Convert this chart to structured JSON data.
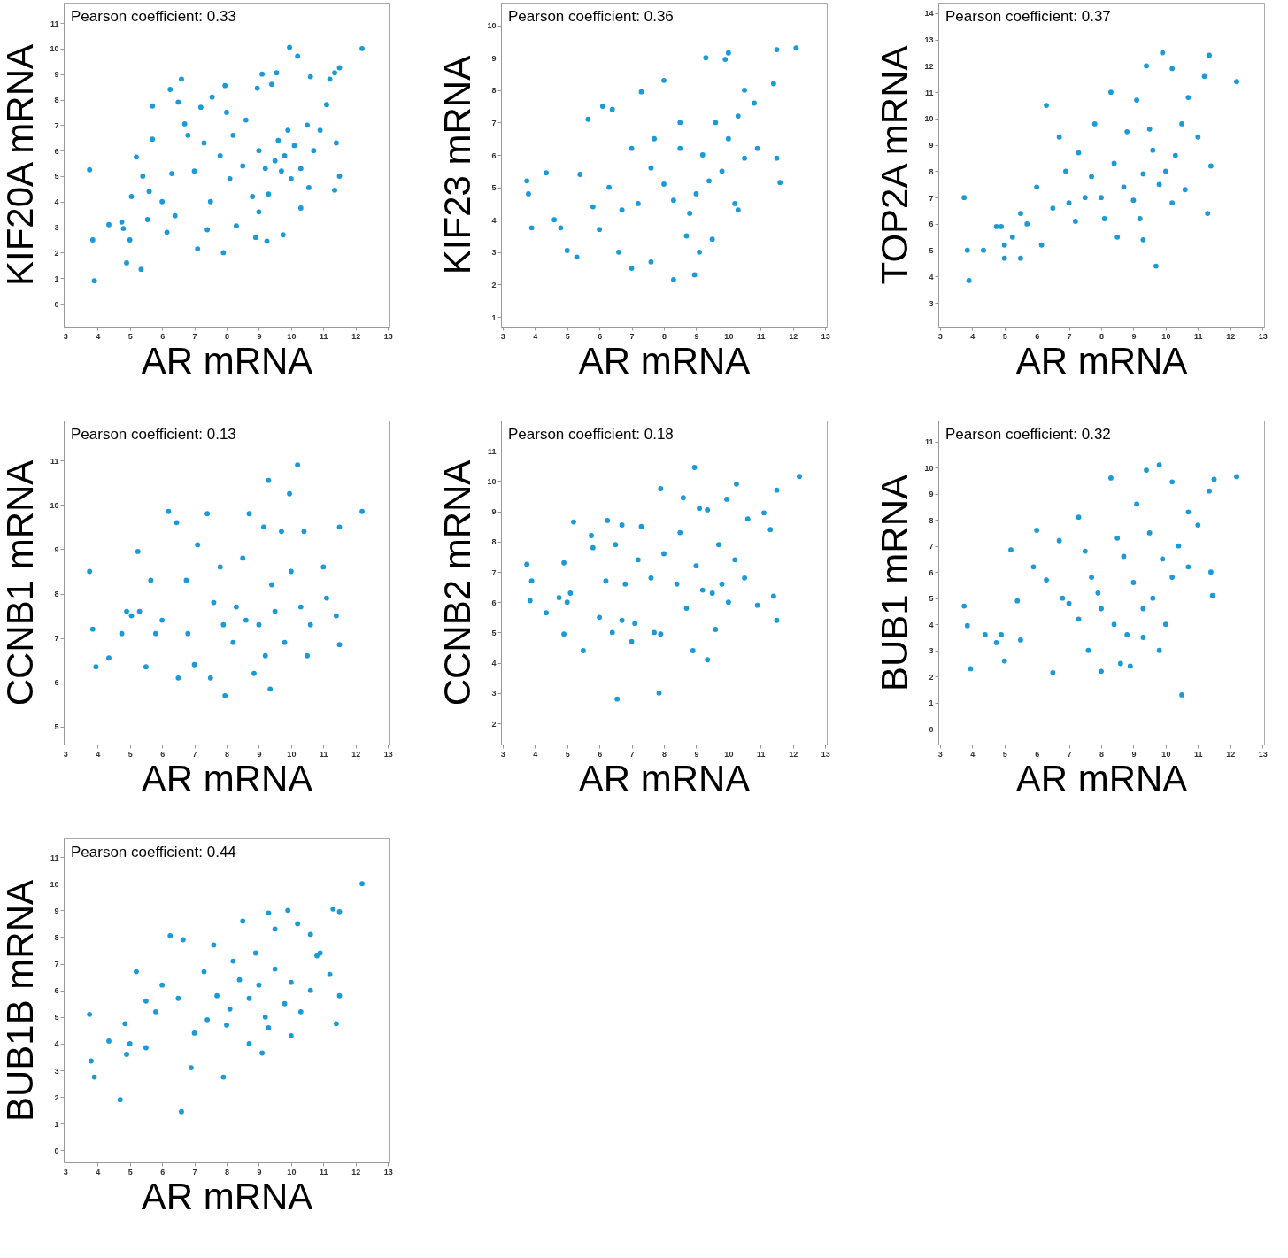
{
  "chart_data": [
    {
      "type": "scatter",
      "xlabel": "AR mRNA",
      "ylabel": "KIF20A mRNA",
      "annotations": [
        "Pearson coefficient: 0.33"
      ],
      "color": "#1a9ad8",
      "marker": "circle",
      "grid": false,
      "xlim": [
        2.95,
        13.05
      ],
      "ylim": [
        -0.9,
        11.8
      ],
      "xticks": [
        3,
        4,
        5,
        6,
        7,
        8,
        9,
        10,
        11,
        12,
        13
      ],
      "yticks": [
        0,
        1,
        2,
        3,
        4,
        5,
        6,
        7,
        8,
        9,
        10,
        11
      ],
      "x": [
        3.75,
        3.85,
        3.9,
        4.35,
        4.75,
        4.8,
        4.9,
        5.0,
        5.05,
        5.2,
        5.35,
        5.4,
        5.7,
        5.7,
        5.6,
        6.15,
        6.25,
        6.5,
        6.6,
        6.4,
        6.7,
        7.1,
        7.4,
        7.9,
        7.95,
        8.9,
        9.25,
        9.75,
        9.95,
        10.2,
        12.2,
        11.5,
        11.35,
        11.2,
        11.35,
        11.5,
        11.4,
        11.1,
        10.6,
        9.1,
        9.55,
        8.95,
        9.4,
        7.55,
        7.2,
        7.3,
        7.0,
        7.5,
        7.8,
        8.1,
        8.3,
        8.5,
        8.6,
        8.8,
        9.0,
        9.2,
        9.3,
        9.5,
        9.6,
        9.7,
        9.8,
        9.9,
        10.0,
        10.1,
        10.3,
        10.5,
        10.7,
        10.9,
        10.3,
        10.55,
        8.2,
        8.0,
        9.0,
        6.0,
        6.3,
        5.55,
        6.8
      ],
      "values": [
        5.25,
        2.5,
        0.9,
        3.1,
        3.2,
        2.95,
        1.6,
        2.5,
        4.2,
        5.75,
        1.35,
        5.0,
        7.75,
        6.45,
        4.4,
        2.8,
        8.4,
        7.9,
        8.8,
        3.45,
        7.05,
        2.15,
        2.9,
        2.0,
        8.55,
        2.6,
        2.45,
        2.7,
        10.05,
        9.7,
        10.0,
        9.25,
        9.05,
        8.8,
        4.45,
        5.0,
        6.3,
        7.8,
        8.9,
        9.0,
        9.05,
        8.45,
        8.6,
        8.1,
        7.7,
        6.3,
        5.2,
        4.0,
        5.8,
        4.9,
        3.05,
        5.4,
        7.2,
        4.2,
        6.0,
        5.3,
        4.3,
        5.6,
        6.4,
        5.2,
        5.8,
        6.8,
        4.9,
        6.2,
        5.3,
        7.0,
        6.0,
        6.8,
        3.75,
        4.55,
        6.6,
        7.5,
        3.6,
        4.0,
        5.1,
        3.3,
        6.6
      ]
    },
    {
      "type": "scatter",
      "xlabel": "AR mRNA",
      "ylabel": "KIF23 mRNA",
      "annotations": [
        "Pearson coefficient: 0.36"
      ],
      "color": "#1a9ad8",
      "marker": "circle",
      "grid": false,
      "xlim": [
        2.95,
        13.05
      ],
      "ylim": [
        0.7,
        10.7
      ],
      "xticks": [
        3,
        4,
        5,
        6,
        7,
        8,
        9,
        10,
        11,
        12,
        13
      ],
      "yticks": [
        1,
        2,
        3,
        4,
        5,
        6,
        7,
        8,
        9,
        10
      ],
      "x": [
        3.75,
        3.8,
        3.9,
        4.35,
        4.6,
        4.8,
        5.0,
        5.3,
        5.4,
        5.65,
        6.1,
        6.4,
        6.6,
        7.0,
        7.3,
        7.0,
        7.6,
        8.0,
        8.3,
        8.95,
        8.7,
        9.3,
        9.9,
        10.0,
        11.5,
        12.1,
        11.4,
        11.6,
        11.5,
        10.5,
        10.8,
        10.3,
        9.6,
        9.2,
        9.4,
        9.0,
        9.8,
        10.0,
        10.2,
        10.5,
        10.9,
        8.5,
        8.0,
        8.8,
        8.3,
        7.6,
        7.2,
        6.7,
        6.3,
        5.8,
        6.0,
        7.7,
        8.5,
        9.5,
        9.1,
        10.3
      ],
      "values": [
        5.2,
        4.8,
        3.75,
        5.45,
        4.0,
        3.75,
        3.05,
        2.85,
        5.4,
        7.1,
        7.5,
        7.4,
        3.0,
        2.5,
        7.95,
        6.2,
        2.7,
        8.3,
        2.15,
        2.3,
        3.5,
        9.0,
        8.95,
        9.15,
        9.25,
        9.3,
        8.2,
        5.15,
        5.9,
        8.0,
        7.6,
        7.2,
        7.0,
        6.0,
        5.2,
        4.8,
        5.5,
        6.5,
        4.5,
        5.9,
        6.2,
        6.2,
        5.1,
        4.2,
        4.6,
        5.6,
        4.5,
        4.3,
        5.0,
        4.4,
        3.7,
        6.5,
        7.0,
        3.4,
        3.0,
        4.3
      ]
    },
    {
      "type": "scatter",
      "xlabel": "AR mRNA",
      "ylabel": "TOP2A mRNA",
      "annotations": [
        "Pearson coefficient: 0.37"
      ],
      "color": "#1a9ad8",
      "marker": "circle",
      "grid": false,
      "xlim": [
        2.95,
        13.05
      ],
      "ylim": [
        2.1,
        14.4
      ],
      "xticks": [
        3,
        4,
        5,
        6,
        7,
        8,
        9,
        10,
        11,
        12,
        13
      ],
      "yticks": [
        3,
        4,
        5,
        6,
        7,
        8,
        9,
        10,
        11,
        12,
        13,
        14
      ],
      "x": [
        3.75,
        3.85,
        3.9,
        4.35,
        4.75,
        4.9,
        5.0,
        5.25,
        5.5,
        5.0,
        5.5,
        5.7,
        6.15,
        6.3,
        6.7,
        6.9,
        7.0,
        7.5,
        7.8,
        8.3,
        8.1,
        8.5,
        8.8,
        9.1,
        9.3,
        9.7,
        9.4,
        9.9,
        10.2,
        11.35,
        11.2,
        12.2,
        11.3,
        11.4,
        11.0,
        10.7,
        10.5,
        10.3,
        10.0,
        9.8,
        9.6,
        9.3,
        9.0,
        9.2,
        8.7,
        8.4,
        8.0,
        7.7,
        7.3,
        7.2,
        6.5,
        6.0,
        10.6,
        10.2,
        9.5
      ],
      "values": [
        7.0,
        5.0,
        3.85,
        5.0,
        5.9,
        5.9,
        5.2,
        5.5,
        4.7,
        4.7,
        6.4,
        6.0,
        5.2,
        10.5,
        9.3,
        8.0,
        6.8,
        7.0,
        9.8,
        11.0,
        6.2,
        5.5,
        9.5,
        10.7,
        5.4,
        4.4,
        12.0,
        12.5,
        11.9,
        12.4,
        11.6,
        11.4,
        6.4,
        8.2,
        9.3,
        10.8,
        9.8,
        8.6,
        8.0,
        7.5,
        8.8,
        7.9,
        6.9,
        6.2,
        7.4,
        8.3,
        7.0,
        7.8,
        8.7,
        6.1,
        6.6,
        7.4,
        7.3,
        6.8,
        9.6
      ]
    },
    {
      "type": "scatter",
      "xlabel": "AR mRNA",
      "ylabel": "CCNB1 mRNA",
      "annotations": [
        "Pearson coefficient: 0.13"
      ],
      "color": "#1a9ad8",
      "marker": "circle",
      "grid": false,
      "xlim": [
        2.95,
        13.05
      ],
      "ylim": [
        4.6,
        11.9
      ],
      "xticks": [
        3,
        4,
        5,
        6,
        7,
        8,
        9,
        10,
        11,
        12,
        13
      ],
      "yticks": [
        5,
        6,
        7,
        8,
        9,
        10,
        11
      ],
      "x": [
        3.75,
        3.85,
        3.95,
        4.35,
        4.75,
        4.9,
        5.05,
        5.25,
        5.5,
        5.65,
        5.8,
        6.2,
        6.45,
        6.5,
        6.75,
        7.0,
        7.1,
        7.4,
        7.5,
        7.8,
        7.9,
        7.95,
        8.2,
        8.3,
        8.5,
        8.7,
        8.85,
        9.15,
        9.35,
        9.3,
        9.7,
        9.95,
        10.2,
        10.4,
        10.0,
        10.3,
        10.6,
        11.0,
        11.1,
        11.4,
        11.5,
        11.5,
        12.2,
        9.0,
        9.2,
        9.5,
        9.8,
        8.6,
        9.4,
        10.5,
        7.6,
        6.8,
        6.0,
        5.3
      ],
      "values": [
        8.5,
        7.2,
        6.35,
        6.55,
        7.1,
        7.6,
        7.5,
        8.95,
        6.35,
        8.3,
        7.1,
        9.85,
        9.6,
        6.1,
        8.3,
        6.4,
        9.1,
        9.8,
        6.1,
        8.6,
        7.3,
        5.7,
        6.9,
        7.7,
        8.8,
        9.8,
        6.2,
        9.5,
        5.85,
        10.55,
        9.4,
        10.25,
        10.9,
        9.4,
        8.5,
        7.7,
        7.3,
        8.6,
        7.9,
        7.5,
        6.85,
        9.5,
        9.85,
        7.3,
        6.6,
        7.6,
        6.9,
        7.4,
        8.2,
        6.6,
        7.8,
        7.1,
        7.4,
        7.6
      ]
    },
    {
      "type": "scatter",
      "xlabel": "AR mRNA",
      "ylabel": "CCNB2 mRNA",
      "annotations": [
        "Pearson coefficient: 0.18"
      ],
      "color": "#1a9ad8",
      "marker": "circle",
      "grid": false,
      "xlim": [
        2.95,
        13.05
      ],
      "ylim": [
        1.3,
        12
      ],
      "xticks": [
        3,
        4,
        5,
        6,
        7,
        8,
        9,
        10,
        11,
        12,
        13
      ],
      "yticks": [
        2,
        3,
        4,
        5,
        6,
        7,
        8,
        9,
        10,
        11
      ],
      "x": [
        3.75,
        3.85,
        3.9,
        4.35,
        4.75,
        4.9,
        4.9,
        5.0,
        5.1,
        5.2,
        5.5,
        5.75,
        5.8,
        6.0,
        6.25,
        6.4,
        6.5,
        6.55,
        6.7,
        6.7,
        7.0,
        7.1,
        7.3,
        7.7,
        7.9,
        7.85,
        7.9,
        8.6,
        8.95,
        8.9,
        9.35,
        9.1,
        9.35,
        9.95,
        10.25,
        12.2,
        11.5,
        11.1,
        11.3,
        11.5,
        11.4,
        10.9,
        10.6,
        10.2,
        9.8,
        9.5,
        9.2,
        9.0,
        8.7,
        8.4,
        8.0,
        7.6,
        7.2,
        6.8,
        6.2,
        9.6,
        10.5,
        8.5,
        9.7,
        10.0
      ],
      "values": [
        7.25,
        6.05,
        6.7,
        5.65,
        6.15,
        7.3,
        4.95,
        6.0,
        6.3,
        8.65,
        4.4,
        8.2,
        7.8,
        5.5,
        8.7,
        5.0,
        7.9,
        2.8,
        8.55,
        5.4,
        4.7,
        5.3,
        8.5,
        5.0,
        9.75,
        3.0,
        4.95,
        9.45,
        10.45,
        4.4,
        4.1,
        9.1,
        9.05,
        9.4,
        9.9,
        10.15,
        9.7,
        8.95,
        8.4,
        5.4,
        6.2,
        5.9,
        8.75,
        7.4,
        6.6,
        6.3,
        6.4,
        7.2,
        5.8,
        6.6,
        7.6,
        6.8,
        7.4,
        6.6,
        6.7,
        5.1,
        6.8,
        8.3,
        7.9,
        6.0
      ]
    },
    {
      "type": "scatter",
      "xlabel": "AR mRNA",
      "ylabel": "BUB1 mRNA",
      "annotations": [
        "Pearson coefficient: 0.32"
      ],
      "color": "#1a9ad8",
      "marker": "circle",
      "grid": false,
      "xlim": [
        2.95,
        13.05
      ],
      "ylim": [
        -0.6,
        11.8
      ],
      "xticks": [
        3,
        4,
        5,
        6,
        7,
        8,
        9,
        10,
        11,
        12,
        13
      ],
      "yticks": [
        0,
        1,
        2,
        3,
        4,
        5,
        6,
        7,
        8,
        9,
        10,
        11
      ],
      "x": [
        3.75,
        3.85,
        3.95,
        4.4,
        4.75,
        4.9,
        5.0,
        5.2,
        5.5,
        5.4,
        5.9,
        6.0,
        6.3,
        6.5,
        6.7,
        7.0,
        7.3,
        7.6,
        7.9,
        8.0,
        8.3,
        8.6,
        8.9,
        9.1,
        9.3,
        9.4,
        9.8,
        10.2,
        10.5,
        11.35,
        11.5,
        12.2,
        11.45,
        11.4,
        11.0,
        10.7,
        10.4,
        10.2,
        9.9,
        9.6,
        9.3,
        9.0,
        8.7,
        8.4,
        8.0,
        7.7,
        7.3,
        6.8,
        10.0,
        9.8,
        10.7,
        9.5,
        8.5,
        7.5,
        8.8
      ],
      "values": [
        4.7,
        3.95,
        2.3,
        3.6,
        3.3,
        3.6,
        2.6,
        6.85,
        3.4,
        4.9,
        6.2,
        7.6,
        5.7,
        2.15,
        7.2,
        4.8,
        8.1,
        3.0,
        5.2,
        2.2,
        9.6,
        2.5,
        2.4,
        8.6,
        3.5,
        9.9,
        10.1,
        9.45,
        1.3,
        9.1,
        9.55,
        9.65,
        5.1,
        6.0,
        7.8,
        8.3,
        7.0,
        5.8,
        6.5,
        5.0,
        4.6,
        5.6,
        6.6,
        4.0,
        4.6,
        5.8,
        4.2,
        5.0,
        4.0,
        3.0,
        6.2,
        7.5,
        7.3,
        6.8,
        3.6
      ]
    },
    {
      "type": "scatter",
      "xlabel": "AR mRNA",
      "ylabel": "BUB1B mRNA",
      "annotations": [
        "Pearson coefficient: 0.44"
      ],
      "color": "#1a9ad8",
      "marker": "circle",
      "grid": false,
      "xlim": [
        2.95,
        13.05
      ],
      "ylim": [
        -0.45,
        11.7
      ],
      "xticks": [
        3,
        4,
        5,
        6,
        7,
        8,
        9,
        10,
        11,
        12,
        13
      ],
      "yticks": [
        0,
        1,
        2,
        3,
        4,
        5,
        6,
        7,
        8,
        9,
        10,
        11
      ],
      "x": [
        3.75,
        3.8,
        3.9,
        4.35,
        4.7,
        4.85,
        4.9,
        5.0,
        5.2,
        5.5,
        5.5,
        5.8,
        6.0,
        6.25,
        6.6,
        6.65,
        6.9,
        7.0,
        7.3,
        7.6,
        7.9,
        8.0,
        8.2,
        8.5,
        8.7,
        9.1,
        9.3,
        9.5,
        9.9,
        10.2,
        10.6,
        11.3,
        11.5,
        12.2,
        11.4,
        11.5,
        11.2,
        10.9,
        10.6,
        10.3,
        10.0,
        9.8,
        9.5,
        9.2,
        9.0,
        8.7,
        8.4,
        8.1,
        7.7,
        7.4,
        10.0,
        9.3,
        8.9,
        6.5,
        10.8
      ],
      "values": [
        5.1,
        3.35,
        2.75,
        4.1,
        1.9,
        4.75,
        3.6,
        4.0,
        6.7,
        5.6,
        3.85,
        5.2,
        6.2,
        8.05,
        1.45,
        7.9,
        3.1,
        4.4,
        6.7,
        7.7,
        2.75,
        4.7,
        7.1,
        8.6,
        4.0,
        3.65,
        8.9,
        8.3,
        9.0,
        8.5,
        8.1,
        9.05,
        8.95,
        10.0,
        4.75,
        5.8,
        6.6,
        7.4,
        6.0,
        5.2,
        6.3,
        5.5,
        6.8,
        5.0,
        6.2,
        5.7,
        6.4,
        5.3,
        5.8,
        4.9,
        4.3,
        4.6,
        7.4,
        5.7,
        7.3
      ]
    }
  ]
}
